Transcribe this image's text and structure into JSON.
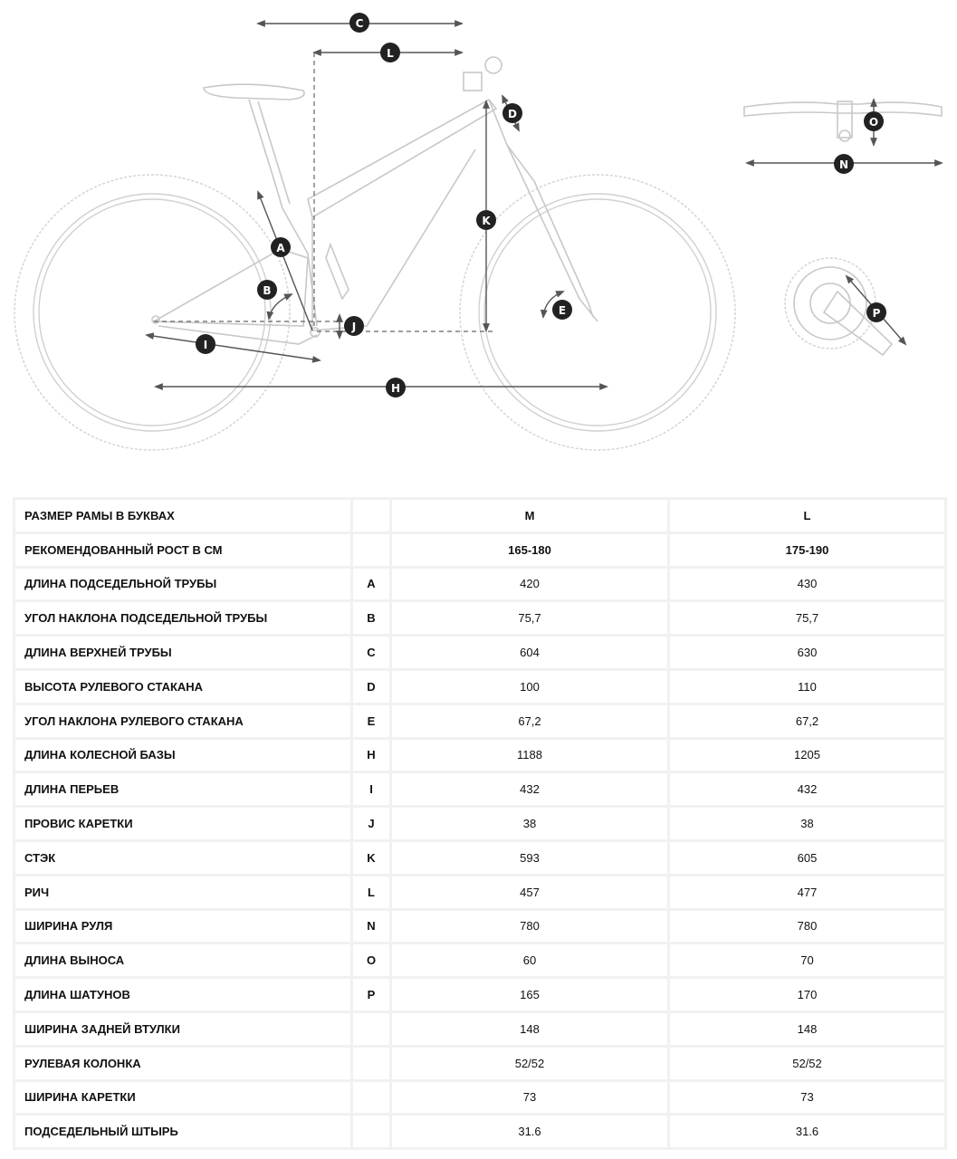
{
  "diagram": {
    "labels": [
      "A",
      "B",
      "C",
      "D",
      "E",
      "H",
      "I",
      "J",
      "K",
      "L",
      "N",
      "O",
      "P"
    ]
  },
  "table": {
    "rows": [
      {
        "label": "РАЗМЕР РАМЫ В БУКВАХ",
        "letter": "",
        "m": "M",
        "l": "L"
      },
      {
        "label": "РЕКОМЕНДОВАННЫЙ РОСТ В СМ",
        "letter": "",
        "m": "165-180",
        "l": "175-190"
      },
      {
        "label": "ДЛИНА ПОДСЕДЕЛЬНОЙ ТРУБЫ",
        "letter": "A",
        "m": "420",
        "l": "430"
      },
      {
        "label": "УГОЛ НАКЛОНА ПОДСЕДЕЛЬНОЙ ТРУБЫ",
        "letter": "B",
        "m": "75,7",
        "l": "75,7"
      },
      {
        "label": "ДЛИНА ВЕРХНЕЙ ТРУБЫ",
        "letter": "C",
        "m": "604",
        "l": "630"
      },
      {
        "label": "ВЫСОТА РУЛЕВОГО СТАКАНА",
        "letter": "D",
        "m": "100",
        "l": "110"
      },
      {
        "label": "УГОЛ НАКЛОНА РУЛЕВОГО СТАКАНА",
        "letter": "E",
        "m": "67,2",
        "l": "67,2"
      },
      {
        "label": "ДЛИНА КОЛЕСНОЙ БАЗЫ",
        "letter": "H",
        "m": "1188",
        "l": "1205"
      },
      {
        "label": "ДЛИНА ПЕРЬЕВ",
        "letter": "I",
        "m": "432",
        "l": "432"
      },
      {
        "label": "ПРОВИС КАРЕТКИ",
        "letter": "J",
        "m": "38",
        "l": "38"
      },
      {
        "label": "СТЭК",
        "letter": "K",
        "m": "593",
        "l": "605"
      },
      {
        "label": "РИЧ",
        "letter": "L",
        "m": "457",
        "l": "477"
      },
      {
        "label": "ШИРИНА РУЛЯ",
        "letter": "N",
        "m": "780",
        "l": "780"
      },
      {
        "label": "ДЛИНА ВЫНОСА",
        "letter": "O",
        "m": "60",
        "l": "70"
      },
      {
        "label": "ДЛИНА ШАТУНОВ",
        "letter": "P",
        "m": "165",
        "l": "170"
      },
      {
        "label": "ШИРИНА ЗАДНЕЙ ВТУЛКИ",
        "letter": "",
        "m": "148",
        "l": "148"
      },
      {
        "label": "РУЛЕВАЯ КОЛОНКА",
        "letter": "",
        "m": "52/52",
        "l": "52/52"
      },
      {
        "label": "ШИРИНА КАРЕТКИ",
        "letter": "",
        "m": "73",
        "l": "73"
      },
      {
        "label": "ПОДСЕДЕЛЬНЫЙ ШТЫРЬ",
        "letter": "",
        "m": "31.6",
        "l": "31.6"
      }
    ]
  }
}
